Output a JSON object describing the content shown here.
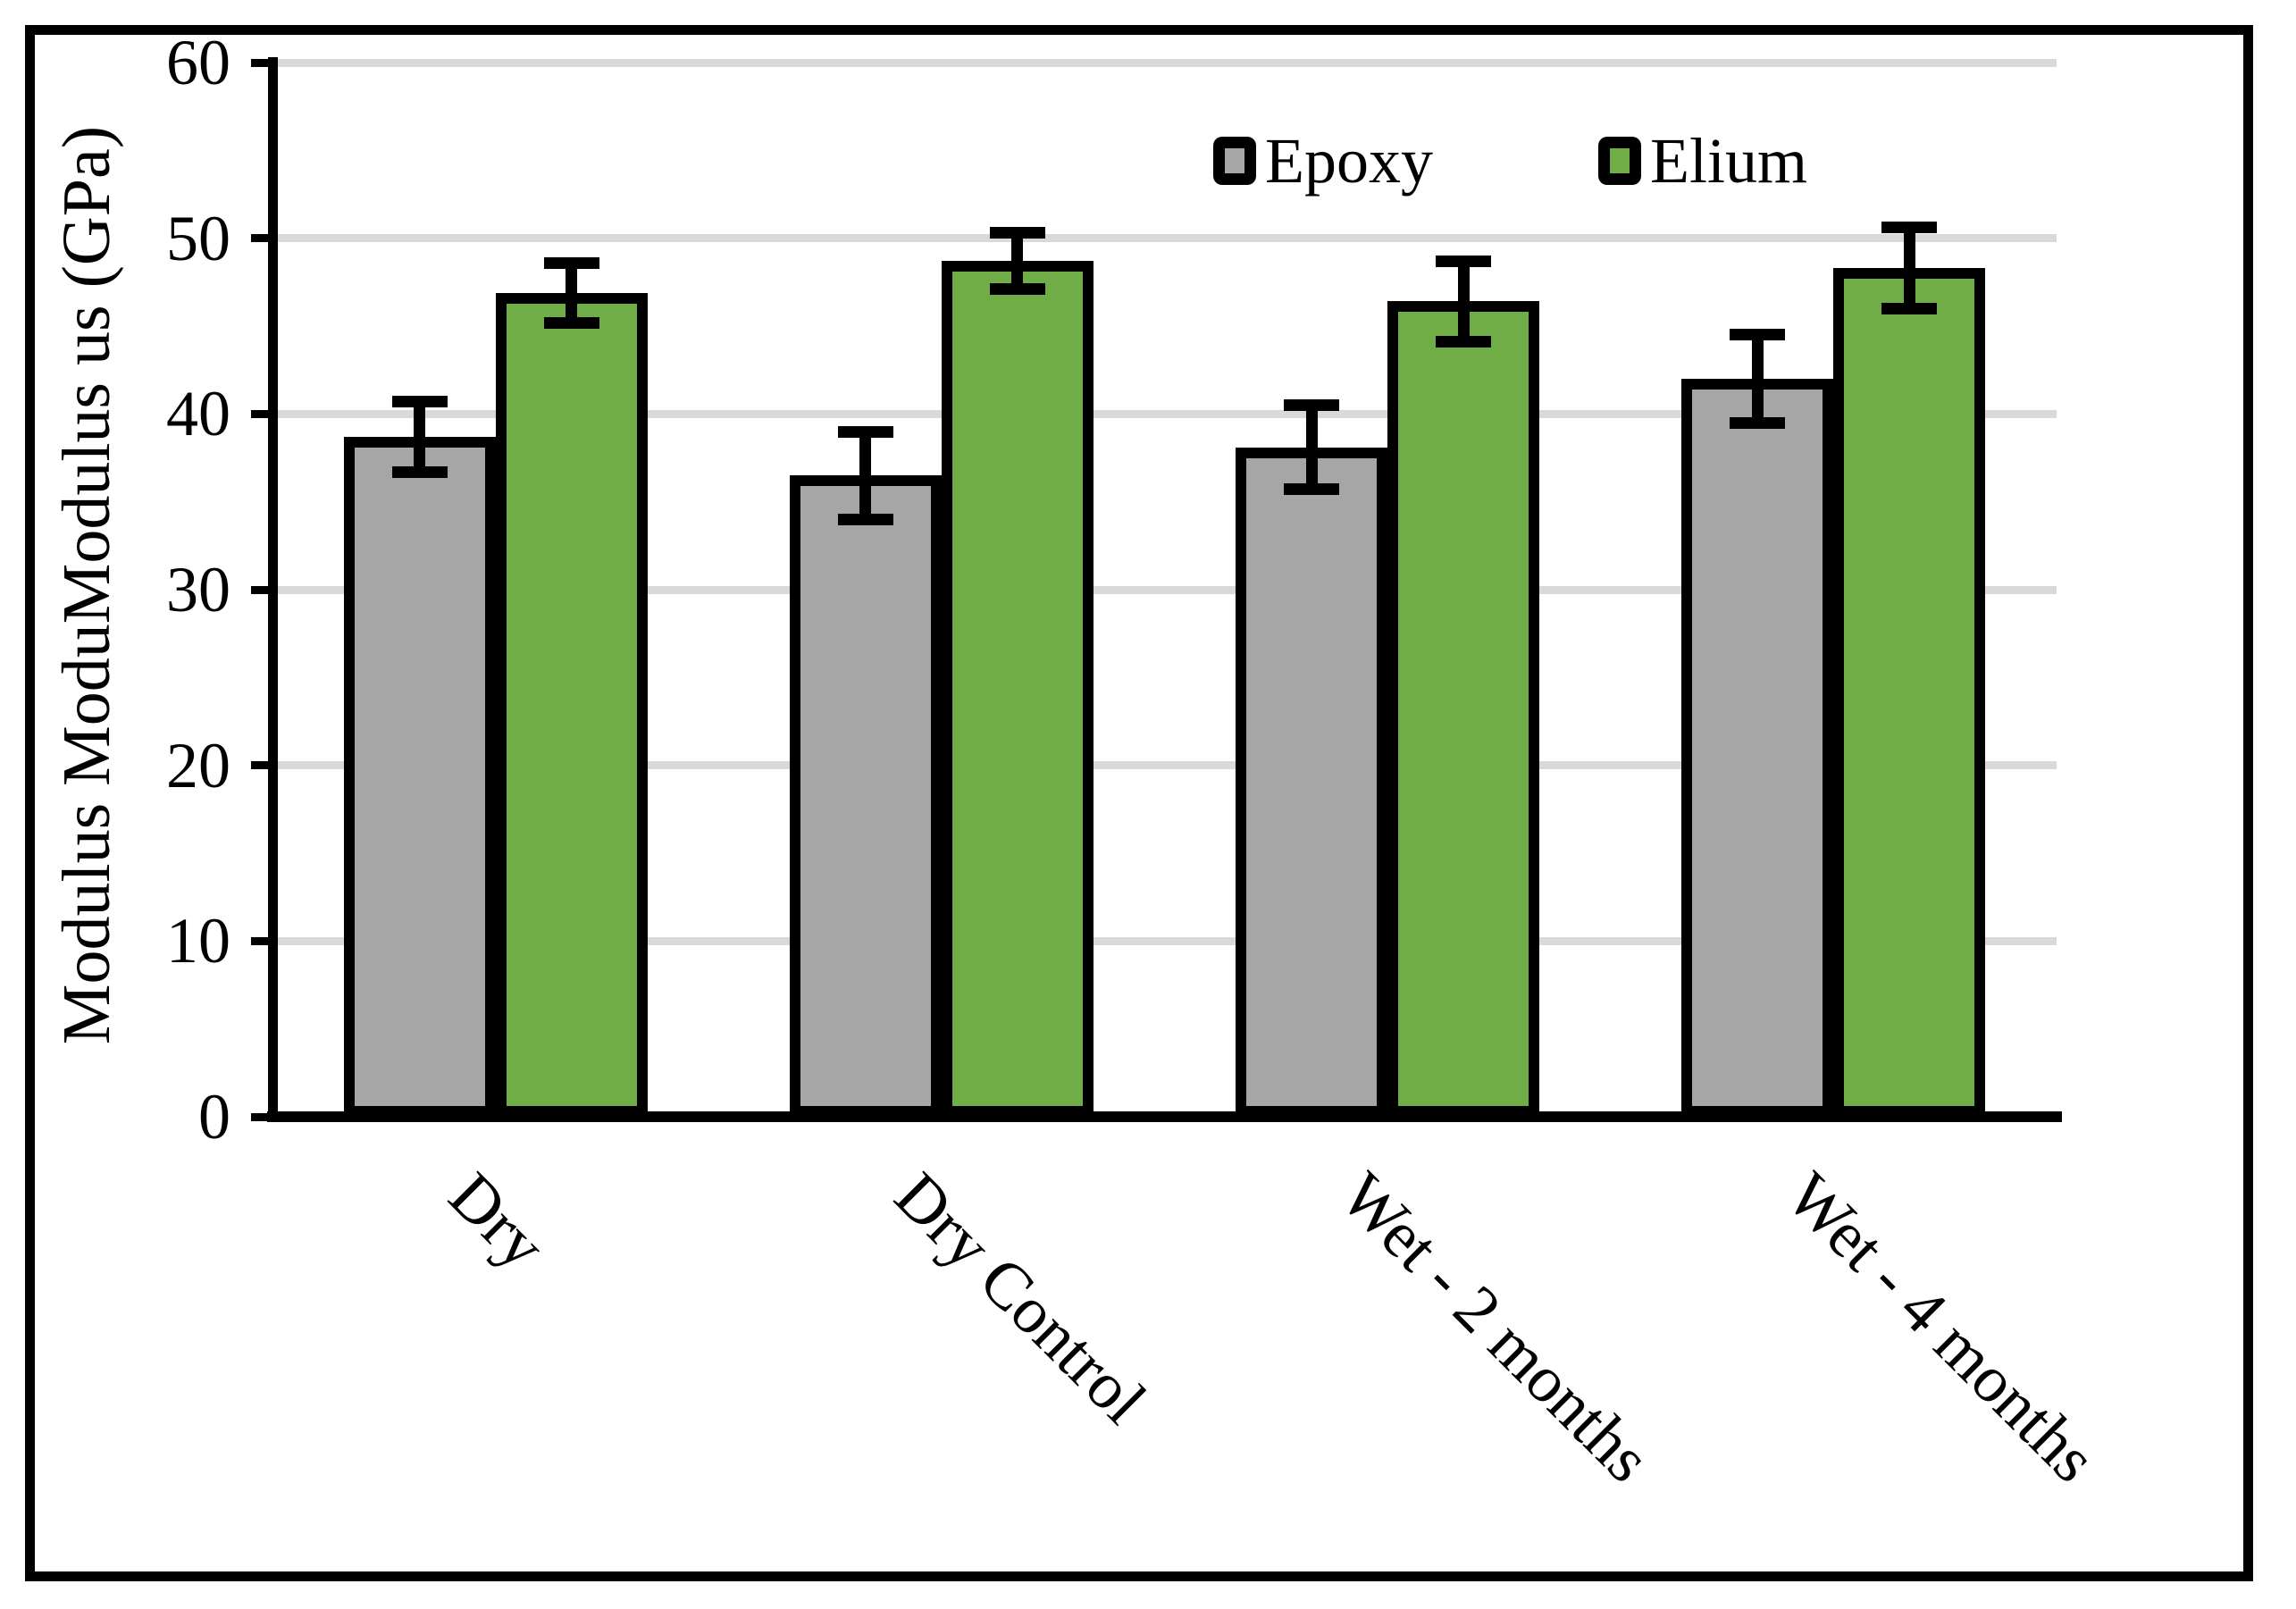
{
  "figure": {
    "background_color": "#FFFFFF",
    "border_color": "#000000"
  },
  "chart_data": {
    "type": "bar",
    "title": "",
    "xlabel": "",
    "ylabel": "Modulus ModuModulus us (GPa)",
    "ylim": [
      0,
      60
    ],
    "yticks": [
      0,
      10,
      20,
      30,
      40,
      50,
      60
    ],
    "grid": true,
    "gridline_color": "#D9D9D9",
    "bar_border_color": "#000000",
    "error_bar_color": "#000000",
    "legend_position": "top-right-inside",
    "categories": [
      "Dry",
      "Dry Control",
      "Wet - 2 months",
      "Wet - 4 months"
    ],
    "series": [
      {
        "name": "Epoxy",
        "color": "#A6A6A6",
        "values": [
          38.7,
          36.5,
          38.1,
          42.0
        ],
        "errors": [
          2.0,
          2.5,
          2.4,
          2.5
        ]
      },
      {
        "name": "Elium",
        "color": "#70AD47",
        "values": [
          46.9,
          48.7,
          46.4,
          48.3
        ],
        "errors": [
          1.7,
          1.6,
          2.3,
          2.3
        ]
      }
    ]
  }
}
